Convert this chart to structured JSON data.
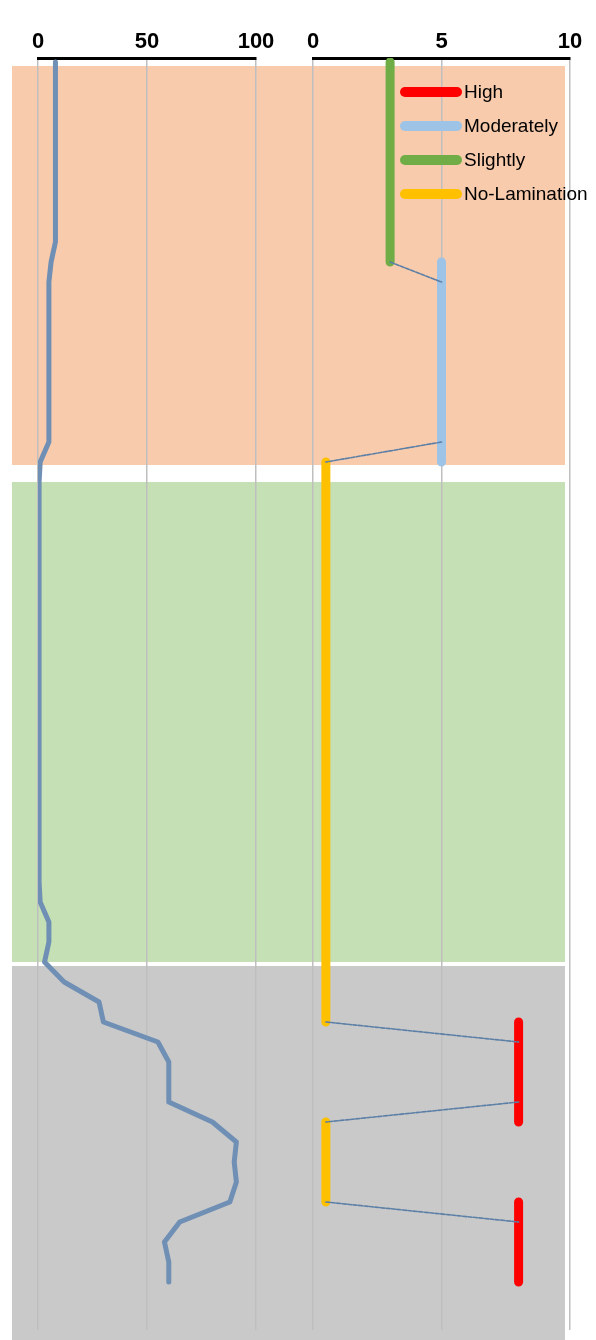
{
  "chart_data": [
    {
      "type": "line",
      "orientation": "horizontal",
      "categories": [
        null,
        null,
        null,
        null,
        null,
        null,
        null,
        null,
        null,
        null,
        null,
        null,
        null,
        null,
        null,
        null,
        null,
        null,
        null,
        null,
        null,
        null,
        null,
        null,
        null,
        null,
        null,
        null,
        null,
        null,
        null,
        null,
        null,
        null,
        null,
        null,
        null,
        null,
        null,
        null,
        null,
        null,
        null,
        null,
        null,
        null,
        null,
        null,
        null,
        null,
        null,
        null,
        null,
        null,
        null,
        null,
        null,
        null,
        null,
        null,
        null,
        null,
        null
      ],
      "series": [
        {
          "color": "#6f8fb5",
          "values": [
            8,
            8,
            8,
            8,
            8,
            8,
            8,
            8,
            8,
            8,
            6,
            5,
            5,
            5,
            5,
            5,
            5,
            5,
            5,
            5,
            1,
            0.5,
            0.5,
            0.5,
            0.5,
            0.5,
            0.5,
            0.5,
            0.5,
            0.5,
            0.5,
            0.5,
            0.5,
            0.5,
            0.5,
            0.5,
            0.5,
            0.5,
            0.5,
            0.5,
            0.5,
            0.5,
            1,
            5,
            5,
            3,
            12,
            28,
            30,
            55,
            60,
            60,
            60,
            80,
            91,
            90,
            91,
            88,
            65,
            58,
            60,
            60,
            null
          ]
        }
      ],
      "xlim": [
        0,
        100
      ],
      "xticks": [
        0,
        50,
        100
      ],
      "grid": "x",
      "marker": "none",
      "legend": false
    },
    {
      "type": "line",
      "orientation": "horizontal",
      "categories": [
        null,
        null,
        null,
        null,
        null,
        null,
        null,
        null,
        null,
        null,
        null,
        null,
        null,
        null,
        null,
        null,
        null,
        null,
        null,
        null,
        null,
        null,
        null,
        null,
        null,
        null,
        null,
        null,
        null,
        null,
        null,
        null,
        null,
        null,
        null,
        null,
        null,
        null,
        null,
        null,
        null,
        null,
        null,
        null,
        null,
        null,
        null,
        null,
        null,
        null,
        null,
        null,
        null,
        null,
        null,
        null,
        null,
        null,
        null,
        null,
        null,
        null,
        null
      ],
      "series": [
        {
          "name": "High",
          "color": "#ff0000",
          "values": [
            null,
            null,
            null,
            null,
            null,
            null,
            null,
            null,
            null,
            null,
            null,
            null,
            null,
            null,
            null,
            null,
            null,
            null,
            null,
            null,
            null,
            null,
            null,
            null,
            null,
            null,
            null,
            null,
            null,
            null,
            null,
            null,
            null,
            null,
            null,
            null,
            null,
            null,
            null,
            null,
            null,
            null,
            null,
            null,
            null,
            null,
            null,
            null,
            8,
            8,
            8,
            8,
            8,
            8,
            null,
            null,
            null,
            8,
            8,
            8,
            8,
            8,
            null
          ]
        },
        {
          "name": "Moderately",
          "color": "#9dc3e6",
          "values": [
            null,
            null,
            null,
            null,
            null,
            null,
            null,
            null,
            null,
            null,
            5,
            5,
            5,
            5,
            5,
            5,
            5,
            5,
            5,
            5,
            5,
            null,
            null,
            null,
            null,
            null,
            null,
            null,
            null,
            null,
            null,
            null,
            null,
            null,
            null,
            null,
            null,
            null,
            null,
            null,
            null,
            null,
            null,
            null,
            null,
            null,
            null,
            null,
            null,
            null,
            null,
            null,
            null,
            null,
            null,
            null,
            null,
            null,
            null,
            null,
            null,
            null,
            null
          ]
        },
        {
          "name": "Slightly",
          "color": "#70ad47",
          "values": [
            3,
            3,
            3,
            3,
            3,
            3,
            3,
            3,
            3,
            3,
            3,
            null,
            null,
            null,
            null,
            null,
            null,
            null,
            null,
            null,
            null,
            null,
            null,
            null,
            null,
            null,
            null,
            null,
            null,
            null,
            null,
            null,
            null,
            null,
            null,
            null,
            null,
            null,
            null,
            null,
            null,
            null,
            null,
            null,
            null,
            null,
            null,
            null,
            null,
            null,
            null,
            null,
            null,
            null,
            null,
            null,
            null,
            null,
            null,
            null,
            null,
            null,
            null
          ]
        },
        {
          "name": "No-Lamination",
          "color": "#ffc000",
          "values": [
            null,
            null,
            null,
            null,
            null,
            null,
            null,
            null,
            null,
            null,
            null,
            null,
            null,
            null,
            null,
            null,
            null,
            null,
            null,
            null,
            0.5,
            0.5,
            0.5,
            0.5,
            0.5,
            0.5,
            0.5,
            0.5,
            0.5,
            0.5,
            0.5,
            0.5,
            0.5,
            0.5,
            0.5,
            0.5,
            0.5,
            0.5,
            0.5,
            0.5,
            0.5,
            0.5,
            0.5,
            0.5,
            0.5,
            0.5,
            0.5,
            0.5,
            0.5,
            null,
            null,
            null,
            null,
            0.5,
            0.5,
            0.5,
            0.5,
            0.5,
            null,
            null,
            null,
            null,
            null
          ]
        },
        {
          "color": "#5b7fa6",
          "line_style": "dashed",
          "values": [
            null,
            null,
            null,
            null,
            null,
            null,
            null,
            null,
            null,
            null,
            3,
            5,
            null,
            null,
            null,
            null,
            null,
            null,
            null,
            5,
            0.5,
            null,
            null,
            null,
            null,
            null,
            null,
            null,
            null,
            null,
            null,
            null,
            null,
            null,
            null,
            null,
            null,
            null,
            null,
            null,
            null,
            null,
            null,
            null,
            null,
            null,
            null,
            null,
            0.5,
            8,
            null,
            null,
            8,
            0.5,
            null,
            null,
            null,
            0.5,
            8,
            null,
            null,
            null,
            null
          ]
        }
      ],
      "xlim": [
        0,
        10
      ],
      "xticks": [
        0,
        5,
        10
      ],
      "grid": "x",
      "marker": "none",
      "legend": "top right"
    }
  ]
}
